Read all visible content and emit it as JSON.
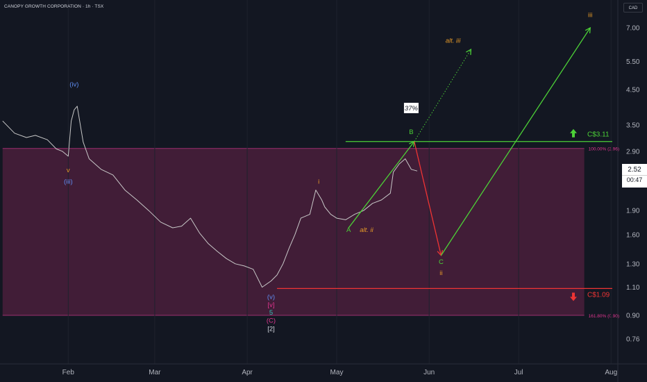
{
  "header": {
    "title": "CANOPY GROWTH CORPORATION · 1h · TSX",
    "currency": "CAD"
  },
  "last_price": {
    "value": "2.52",
    "countdown": "00:47"
  },
  "colors": {
    "background": "#131722",
    "price_line": "#c8c8c8",
    "zone_fill": "#4a1f3b",
    "zone_border": "#9c2f6f",
    "green": "#4cd137",
    "red": "#ef3434",
    "orange": "#e69a28",
    "blue": "#5e8cf0",
    "pink": "#e0358f",
    "teal": "#2ec4b6"
  },
  "chart_data": {
    "type": "line",
    "title": "CANOPY GROWTH CORPORATION · 1h · TSX",
    "xlabel": "",
    "ylabel": "",
    "y_scale": "log",
    "ylim": [
      0.65,
      9.0
    ],
    "y_ticks": [
      "7.00",
      "5.50",
      "4.50",
      "3.50",
      "2.90",
      "2.52",
      "1.90",
      "1.60",
      "1.30",
      "1.10",
      "0.90",
      "0.76"
    ],
    "x_ticks": [
      "Feb",
      "Mar",
      "Apr",
      "May",
      "Jun",
      "Jul",
      "Aug"
    ],
    "series": [
      {
        "x": [
          "2024-01-10",
          "2024-01-14",
          "2024-01-18",
          "2024-01-21",
          "2024-01-25",
          "2024-01-28",
          "2024-01-30",
          "2024-02-01",
          "2024-02-02",
          "2024-02-03",
          "2024-02-04",
          "2024-02-06",
          "2024-02-08",
          "2024-02-12",
          "2024-02-16",
          "2024-02-20",
          "2024-02-24",
          "2024-02-28",
          "2024-03-03",
          "2024-03-07",
          "2024-03-10",
          "2024-03-13",
          "2024-03-16",
          "2024-03-19",
          "2024-03-22",
          "2024-03-25",
          "2024-03-28",
          "2024-03-31",
          "2024-04-03",
          "2024-04-06",
          "2024-04-09",
          "2024-04-11",
          "2024-04-13",
          "2024-04-15",
          "2024-04-17",
          "2024-04-19",
          "2024-04-22",
          "2024-04-24",
          "2024-04-26",
          "2024-04-27",
          "2024-04-29",
          "2024-05-01",
          "2024-05-04",
          "2024-05-07",
          "2024-05-10",
          "2024-05-13",
          "2024-05-16",
          "2024-05-19",
          "2024-05-20",
          "2024-05-22",
          "2024-05-24",
          "2024-05-26",
          "2024-05-28"
        ],
        "y": [
          3.6,
          3.3,
          3.2,
          3.25,
          3.15,
          2.95,
          2.9,
          2.8,
          3.6,
          3.9,
          4.0,
          3.1,
          2.75,
          2.55,
          2.45,
          2.2,
          2.05,
          1.9,
          1.75,
          1.68,
          1.7,
          1.8,
          1.62,
          1.5,
          1.42,
          1.35,
          1.3,
          1.28,
          1.25,
          1.1,
          1.15,
          1.2,
          1.3,
          1.45,
          1.6,
          1.8,
          1.85,
          2.2,
          2.05,
          1.95,
          1.85,
          1.8,
          1.78,
          1.85,
          1.9,
          2.0,
          2.05,
          2.15,
          2.5,
          2.65,
          2.75,
          2.55,
          2.52
        ]
      }
    ],
    "zone": {
      "top": 2.96,
      "bottom": 0.9,
      "start": "2024-01-10",
      "end": "2024-07-23",
      "top_label": "100.00% (2.96)",
      "bottom_label": "161.80% (0.90)"
    },
    "levels": [
      {
        "value": 3.11,
        "label": "C$3.11",
        "color": "#4cd137",
        "start": "2024-05-04",
        "direction": "up"
      },
      {
        "value": 1.09,
        "label": "C$1.09",
        "color": "#ef3434",
        "start": "2024-04-11",
        "direction": "down"
      }
    ],
    "projections": [
      {
        "name": "A-B",
        "color": "#4cd137",
        "style": "solid",
        "points": [
          [
            "2024-05-05",
            1.68
          ],
          [
            "2024-05-27",
            3.11
          ]
        ]
      },
      {
        "name": "B-C",
        "color": "#ef3434",
        "style": "solid",
        "points": [
          [
            "2024-05-27",
            3.11
          ],
          [
            "2024-06-05",
            1.38
          ]
        ]
      },
      {
        "name": "C-iii",
        "color": "#4cd137",
        "style": "solid",
        "points": [
          [
            "2024-06-05",
            1.38
          ],
          [
            "2024-07-25",
            7.0
          ]
        ]
      },
      {
        "name": "alt-iii",
        "color": "#4cd137",
        "style": "dotted",
        "points": [
          [
            "2024-05-27",
            3.11
          ],
          [
            "2024-06-15",
            6.0
          ]
        ]
      }
    ],
    "probability_badge": {
      "text": "37%",
      "x": "2024-05-26",
      "y": 3.95
    },
    "annotations": [
      {
        "text": "(iv)",
        "x": "2024-02-03",
        "y": 4.6,
        "color": "#5e8cf0"
      },
      {
        "text": "v",
        "x": "2024-02-01",
        "y": 2.5,
        "color": "#e69a28"
      },
      {
        "text": "(iii)",
        "x": "2024-02-01",
        "y": 2.3,
        "color": "#5e8cf0"
      },
      {
        "text": "(v)",
        "x": "2024-04-09",
        "y": 1.01,
        "color": "#5e8cf0"
      },
      {
        "text": "[v]",
        "x": "2024-04-09",
        "y": 0.955,
        "color": "#e0358f"
      },
      {
        "text": "5",
        "x": "2024-04-09",
        "y": 0.905,
        "color": "#2ec4b6"
      },
      {
        "text": "(C)",
        "x": "2024-04-09",
        "y": 0.855,
        "color": "#e0358f"
      },
      {
        "text": "[2]",
        "x": "2024-04-09",
        "y": 0.805,
        "color": "#d1d4dc"
      },
      {
        "text": "i",
        "x": "2024-04-25",
        "y": 2.3,
        "color": "#e69a28"
      },
      {
        "text": "A",
        "x": "2024-05-05",
        "y": 1.63,
        "color": "#4cd137"
      },
      {
        "text": "alt. ii",
        "x": "2024-05-11",
        "y": 1.63,
        "color": "#e69a28"
      },
      {
        "text": "B",
        "x": "2024-05-26",
        "y": 3.28,
        "color": "#4cd137"
      },
      {
        "text": "C",
        "x": "2024-06-05",
        "y": 1.3,
        "color": "#4cd137"
      },
      {
        "text": "ii",
        "x": "2024-06-05",
        "y": 1.2,
        "color": "#e69a28"
      },
      {
        "text": "alt. iii",
        "x": "2024-06-09",
        "y": 6.3,
        "color": "#e69a28"
      },
      {
        "text": "iii",
        "x": "2024-07-25",
        "y": 7.55,
        "color": "#e69a28"
      }
    ]
  }
}
